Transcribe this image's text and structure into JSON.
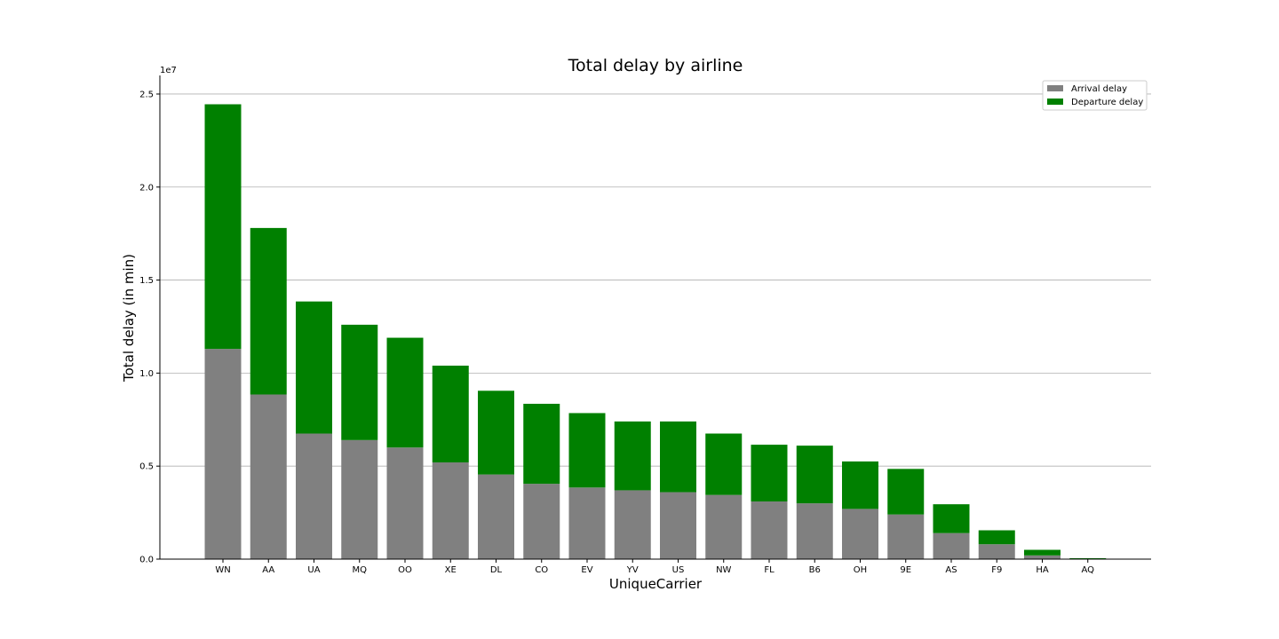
{
  "chart_data": {
    "type": "bar",
    "stacked": true,
    "title": "Total delay by airline",
    "xlabel": "UniqueCarrier",
    "ylabel": "Total delay (in min)",
    "y_offset_label": "1e7",
    "ylim": [
      0,
      2.6
    ],
    "yticks": [
      0.0,
      0.5,
      1.0,
      1.5,
      2.0,
      2.5
    ],
    "ytick_labels": [
      "0.0",
      "0.5",
      "1.0",
      "1.5",
      "2.0",
      "2.5"
    ],
    "grid": "y",
    "legend_position": "top-right",
    "categories": [
      "WN",
      "AA",
      "UA",
      "MQ",
      "OO",
      "XE",
      "DL",
      "CO",
      "EV",
      "YV",
      "US",
      "NW",
      "FL",
      "B6",
      "OH",
      "9E",
      "AS",
      "F9",
      "HA",
      "AQ"
    ],
    "series": [
      {
        "name": "Arrival delay",
        "color": "#808080",
        "values": [
          1.13,
          0.885,
          0.675,
          0.64,
          0.6,
          0.52,
          0.455,
          0.405,
          0.385,
          0.37,
          0.36,
          0.345,
          0.31,
          0.3,
          0.27,
          0.24,
          0.14,
          0.08,
          0.02,
          0.002
        ]
      },
      {
        "name": "Departure delay",
        "color": "#008000",
        "values": [
          1.315,
          0.895,
          0.71,
          0.62,
          0.59,
          0.52,
          0.45,
          0.43,
          0.4,
          0.37,
          0.38,
          0.33,
          0.305,
          0.31,
          0.255,
          0.245,
          0.155,
          0.075,
          0.03,
          0.003
        ]
      }
    ]
  }
}
